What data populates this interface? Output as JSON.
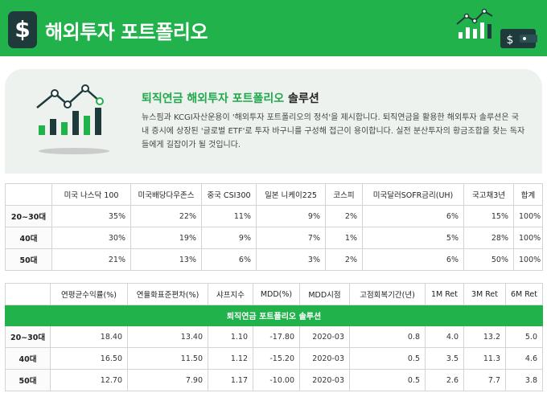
{
  "header": {
    "logo_glyph": "$",
    "title": "해외투자 포트폴리오"
  },
  "intro": {
    "title_accent": "퇴직연금 해외투자 포트폴리오",
    "title_rest": " 솔루션",
    "body": "뉴스핌과 KCGI자산운용이 '해외투자 포트폴리오의 정석'을 제시합니다. 퇴직연금을 활용한 해외투자 솔루션은 국내 증시에 상장된 '글로벌 ETF'로 투자 바구니를 구성해 접근이 용이합니다. 실전 분산투자의 황금조합을 찾는 독자들에게 길잡이가 될 것입니다."
  },
  "colors": {
    "brand_green": "#22b24c",
    "logo_dark": "#1f3a3a"
  },
  "allocation": {
    "columns": [
      "미국 나스닥 100",
      "미국배당다우존스",
      "중국 CSI300",
      "일본 니케이225",
      "코스피",
      "미국달러SOFR금리(UH)",
      "국고채3년",
      "합계"
    ],
    "rows": [
      {
        "label": "20~30대",
        "values": [
          "35%",
          "22%",
          "11%",
          "9%",
          "2%",
          "6%",
          "15%",
          "100%"
        ]
      },
      {
        "label": "40대",
        "values": [
          "30%",
          "19%",
          "9%",
          "7%",
          "1%",
          "5%",
          "28%",
          "100%"
        ]
      },
      {
        "label": "50대",
        "values": [
          "21%",
          "13%",
          "6%",
          "3%",
          "2%",
          "6%",
          "50%",
          "100%"
        ]
      }
    ]
  },
  "performance": {
    "columns": [
      "연평균수익률(%)",
      "연율화표준편차(%)",
      "샤프지수",
      "MDD(%)",
      "MDD시점",
      "고점회복기간(년)",
      "1M Ret",
      "3M Ret",
      "6M Ret"
    ],
    "banner": "퇴직연금 포트폴리오 솔루션",
    "rows": [
      {
        "label": "20~30대",
        "values": [
          "18.40",
          "13.40",
          "1.10",
          "-17.80",
          "2020-03",
          "0.8",
          "4.0",
          "13.2",
          "5.0"
        ]
      },
      {
        "label": "40대",
        "values": [
          "16.50",
          "11.50",
          "1.12",
          "-15.20",
          "2020-03",
          "0.5",
          "3.5",
          "11.3",
          "4.6"
        ]
      },
      {
        "label": "50대",
        "values": [
          "12.70",
          "7.90",
          "1.17",
          "-10.00",
          "2020-03",
          "0.5",
          "2.6",
          "7.7",
          "3.8"
        ]
      }
    ]
  }
}
